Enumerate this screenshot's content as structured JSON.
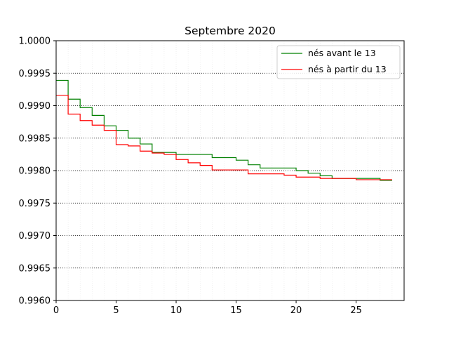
{
  "chart_data": {
    "type": "line",
    "drawstyle": "steps-post",
    "title": "Septembre 2020",
    "xlabel": "",
    "ylabel": "",
    "xlim": [
      0,
      29
    ],
    "ylim": [
      0.996,
      1.0
    ],
    "x_ticks": [
      0,
      5,
      10,
      15,
      20,
      25
    ],
    "y_ticks": [
      0.996,
      0.9965,
      0.997,
      0.9975,
      0.998,
      0.9985,
      0.999,
      0.9995,
      1.0
    ],
    "x_tick_labels": [
      "0",
      "5",
      "10",
      "15",
      "20",
      "25"
    ],
    "y_tick_labels": [
      "0.9960",
      "0.9965",
      "0.9970",
      "0.9975",
      "0.9980",
      "0.9985",
      "0.9990",
      "0.9995",
      "1.0000"
    ],
    "grid": "y-major dotted, x-minor faint",
    "legend_position": "top-right",
    "series": [
      {
        "name": "nés avant le 13",
        "color": "#008000",
        "x": [
          0,
          1,
          2,
          3,
          4,
          5,
          6,
          7,
          8,
          9,
          10,
          11,
          12,
          13,
          14,
          15,
          16,
          17,
          18,
          19,
          20,
          21,
          22,
          23,
          24,
          25,
          26,
          27,
          28
        ],
        "y": [
          0.99939,
          0.9991,
          0.99897,
          0.99885,
          0.99869,
          0.99862,
          0.9985,
          0.99841,
          0.99828,
          0.99828,
          0.99825,
          0.99825,
          0.99825,
          0.9982,
          0.9982,
          0.99816,
          0.99809,
          0.99804,
          0.99804,
          0.99804,
          0.998,
          0.99796,
          0.99792,
          0.99788,
          0.99788,
          0.99788,
          0.99788,
          0.99785,
          0.99785
        ]
      },
      {
        "name": "nés à partir du 13",
        "color": "#ff0000",
        "x": [
          0,
          1,
          2,
          3,
          4,
          5,
          6,
          7,
          8,
          9,
          10,
          11,
          12,
          13,
          14,
          15,
          16,
          17,
          18,
          19,
          20,
          21,
          22,
          23,
          24,
          25,
          26,
          27,
          28
        ],
        "y": [
          0.99916,
          0.99887,
          0.99877,
          0.9987,
          0.99862,
          0.9984,
          0.99838,
          0.9983,
          0.99827,
          0.99825,
          0.99817,
          0.99812,
          0.99808,
          0.99801,
          0.99801,
          0.99801,
          0.99795,
          0.99795,
          0.99795,
          0.99793,
          0.9979,
          0.9979,
          0.99788,
          0.99788,
          0.99788,
          0.99786,
          0.99786,
          0.99786,
          0.99786
        ]
      }
    ]
  }
}
